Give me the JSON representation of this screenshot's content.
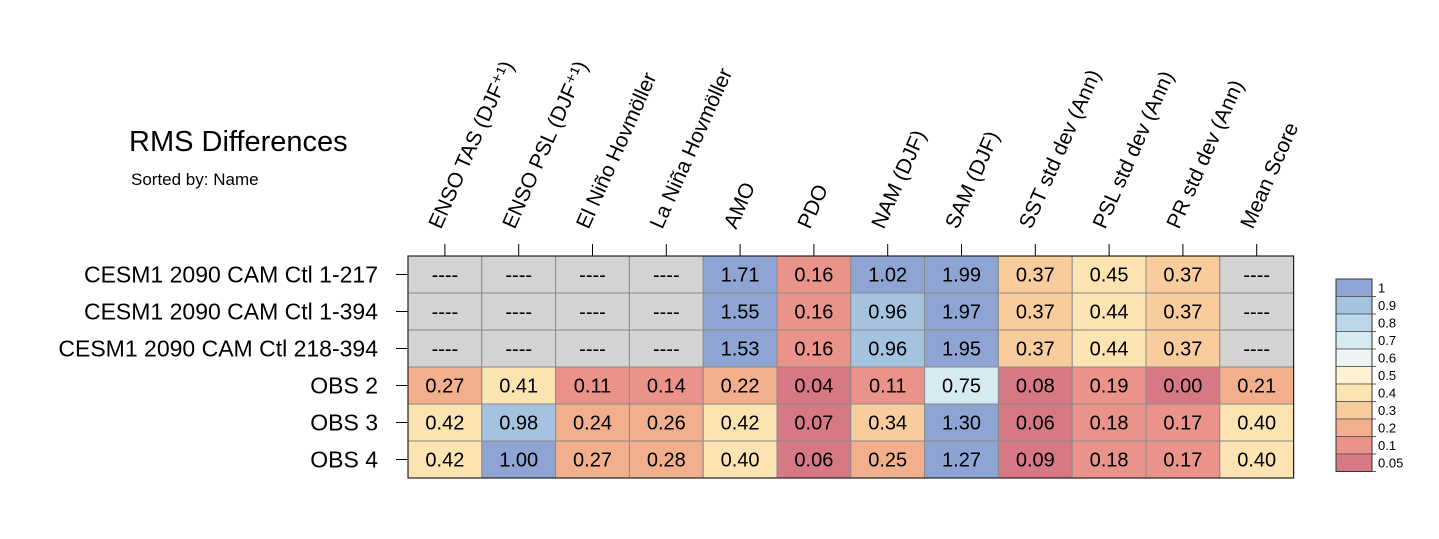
{
  "chart_data": {
    "type": "heatmap",
    "title": "RMS Differences",
    "subtitle": "Sorted by: Name",
    "columns": [
      "ENSO TAS (DJF⁺¹)",
      "ENSO PSL (DJF⁺¹)",
      "El Niño Hovmöller",
      "La Niña Hovmöller",
      "AMO",
      "PDO",
      "NAM (DJF)",
      "SAM (DJF)",
      "SST std dev (Ann)",
      "PSL std dev (Ann)",
      "PR std dev (Ann)",
      "Mean Score"
    ],
    "rows": [
      "CESM1 2090 CAM Ctl 1-217",
      "CESM1 2090 CAM Ctl 1-394",
      "CESM1 2090 CAM Ctl 218-394",
      "OBS 2",
      "OBS 3",
      "OBS 4"
    ],
    "values": [
      [
        null,
        null,
        null,
        null,
        1.71,
        0.16,
        1.02,
        1.99,
        0.37,
        0.45,
        0.37,
        null
      ],
      [
        null,
        null,
        null,
        null,
        1.55,
        0.16,
        0.96,
        1.97,
        0.37,
        0.44,
        0.37,
        null
      ],
      [
        null,
        null,
        null,
        null,
        1.53,
        0.16,
        0.96,
        1.95,
        0.37,
        0.44,
        0.37,
        null
      ],
      [
        0.27,
        0.41,
        0.11,
        0.14,
        0.22,
        0.04,
        0.11,
        0.75,
        0.08,
        0.19,
        0.0,
        0.21
      ],
      [
        0.42,
        0.98,
        0.24,
        0.26,
        0.42,
        0.07,
        0.34,
        1.3,
        0.06,
        0.18,
        0.17,
        0.4
      ],
      [
        0.42,
        1.0,
        0.27,
        0.28,
        0.4,
        0.06,
        0.25,
        1.27,
        0.09,
        0.18,
        0.17,
        0.4
      ]
    ],
    "missing_label": "----",
    "missing_color": "#d3d3d3",
    "colorbar": {
      "labels": [
        "1",
        "0.9",
        "0.8",
        "0.7",
        "0.6",
        "0.5",
        "0.4",
        "0.3",
        "0.2",
        "0.1",
        "0.05"
      ],
      "colors": [
        "#8ea4d2",
        "#a4c3de",
        "#bcd8e8",
        "#d6eaf2",
        "#eef4f2",
        "#fdf2d2",
        "#fbe3b2",
        "#f8cc9c",
        "#f2af8e",
        "#ea938a",
        "#d77985"
      ],
      "position": "right"
    },
    "color_thresholds": [
      1.0,
      0.9,
      0.8,
      0.7,
      0.6,
      0.5,
      0.4,
      0.3,
      0.2,
      0.1,
      0.05
    ]
  }
}
